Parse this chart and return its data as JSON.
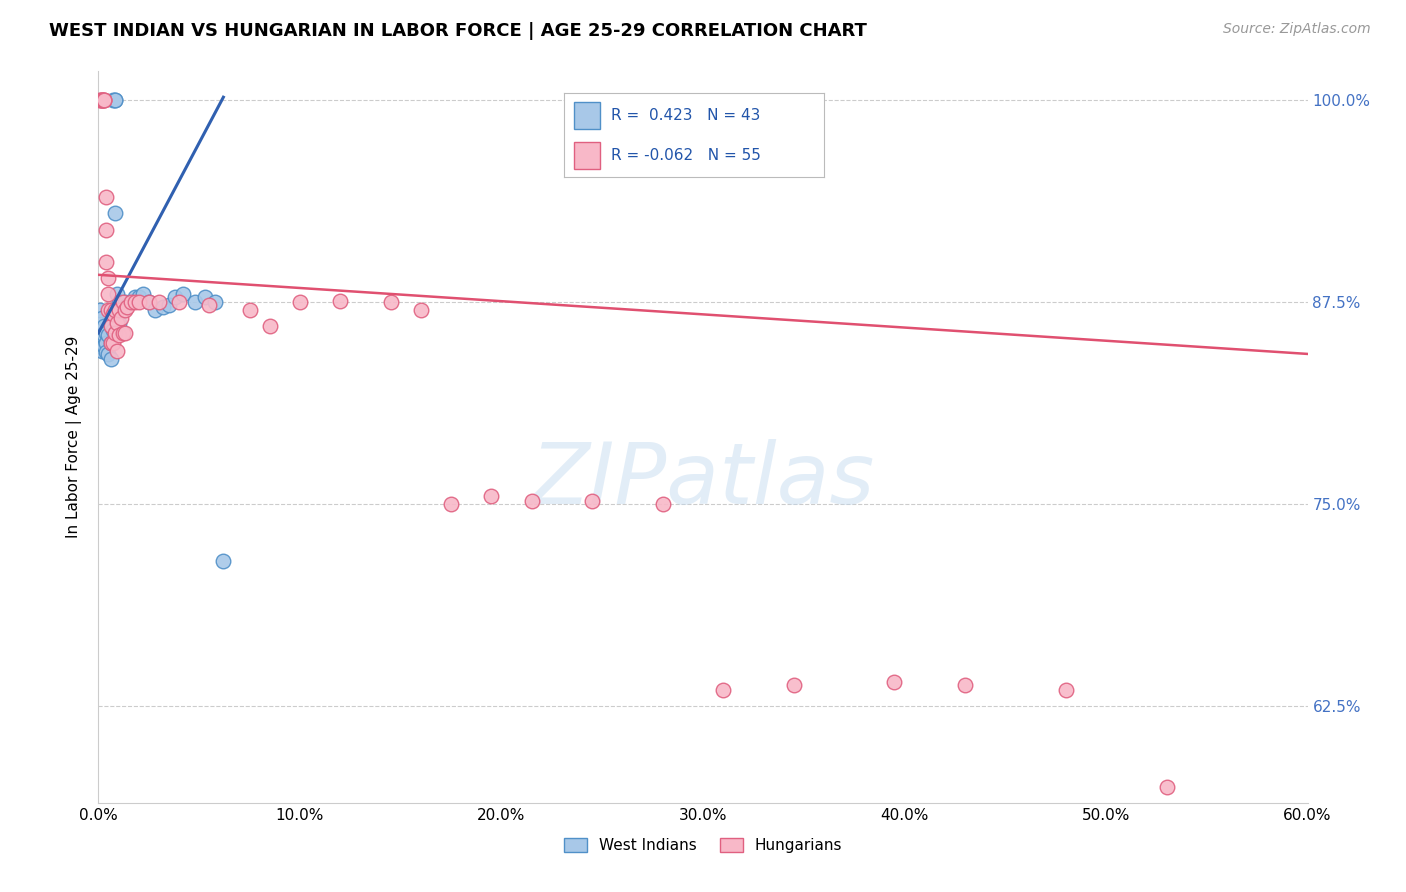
{
  "title": "WEST INDIAN VS HUNGARIAN IN LABOR FORCE | AGE 25-29 CORRELATION CHART",
  "source": "Source: ZipAtlas.com",
  "ylabel": "In Labor Force | Age 25-29",
  "xmin": 0.0,
  "xmax": 0.6,
  "ymin": 0.565,
  "ymax": 1.018,
  "xtick_values": [
    0.0,
    0.1,
    0.2,
    0.3,
    0.4,
    0.5,
    0.6
  ],
  "ytick_values": [
    0.625,
    0.75,
    0.875,
    1.0
  ],
  "gridline_y": [
    0.625,
    0.75,
    0.875,
    1.0
  ],
  "blue_color": "#A8C8E8",
  "pink_color": "#F8B8C8",
  "blue_edge": "#5090C8",
  "pink_edge": "#E06080",
  "trend_blue": "#3060B0",
  "trend_pink": "#E05070",
  "bg_color": "#FFFFFF",
  "title_fontsize": 13,
  "axis_label_fontsize": 11,
  "tick_fontsize": 11,
  "source_fontsize": 10,
  "wi_x": [
    0.001,
    0.001,
    0.002,
    0.002,
    0.002,
    0.003,
    0.003,
    0.003,
    0.004,
    0.004,
    0.004,
    0.005,
    0.005,
    0.006,
    0.006,
    0.006,
    0.007,
    0.007,
    0.008,
    0.008,
    0.008,
    0.009,
    0.009,
    0.01,
    0.01,
    0.011,
    0.012,
    0.013,
    0.014,
    0.016,
    0.018,
    0.02,
    0.022,
    0.025,
    0.028,
    0.032,
    0.035,
    0.038,
    0.042,
    0.048,
    0.053,
    0.058,
    0.062
  ],
  "wi_y": [
    0.87,
    0.858,
    0.865,
    0.855,
    0.845,
    0.86,
    0.855,
    0.848,
    0.856,
    0.85,
    0.844,
    0.855,
    0.843,
    0.862,
    0.85,
    0.84,
    0.858,
    1.0,
    1.0,
    1.0,
    0.93,
    0.88,
    0.868,
    0.875,
    0.862,
    0.873,
    0.87,
    0.875,
    0.873,
    0.875,
    0.878,
    0.878,
    0.88,
    0.875,
    0.87,
    0.872,
    0.873,
    0.878,
    0.88,
    0.875,
    0.878,
    0.875,
    0.715
  ],
  "hu_x": [
    0.001,
    0.001,
    0.002,
    0.002,
    0.002,
    0.003,
    0.003,
    0.003,
    0.004,
    0.004,
    0.004,
    0.005,
    0.005,
    0.005,
    0.006,
    0.006,
    0.006,
    0.007,
    0.007,
    0.008,
    0.008,
    0.009,
    0.009,
    0.01,
    0.01,
    0.011,
    0.012,
    0.012,
    0.013,
    0.013,
    0.014,
    0.016,
    0.018,
    0.02,
    0.025,
    0.03,
    0.04,
    0.055,
    0.075,
    0.085,
    0.1,
    0.12,
    0.145,
    0.16,
    0.175,
    0.195,
    0.215,
    0.245,
    0.28,
    0.31,
    0.345,
    0.395,
    0.43,
    0.48,
    0.53
  ],
  "hu_y": [
    1.0,
    1.0,
    1.0,
    1.0,
    1.0,
    1.0,
    1.0,
    1.0,
    0.94,
    0.92,
    0.9,
    0.89,
    0.88,
    0.87,
    0.87,
    0.86,
    0.85,
    0.868,
    0.85,
    0.87,
    0.856,
    0.862,
    0.845,
    0.87,
    0.855,
    0.865,
    0.875,
    0.856,
    0.87,
    0.856,
    0.872,
    0.875,
    0.875,
    0.875,
    0.875,
    0.875,
    0.875,
    0.873,
    0.87,
    0.86,
    0.875,
    0.876,
    0.875,
    0.87,
    0.75,
    0.755,
    0.752,
    0.752,
    0.75,
    0.635,
    0.638,
    0.64,
    0.638,
    0.635,
    0.575
  ],
  "wi_trend_x0": 0.0,
  "wi_trend_y0": 0.856,
  "wi_trend_x1": 0.062,
  "wi_trend_y1": 1.002,
  "hu_trend_x0": 0.0,
  "hu_trend_y0": 0.892,
  "hu_trend_x1": 0.6,
  "hu_trend_y1": 0.843
}
